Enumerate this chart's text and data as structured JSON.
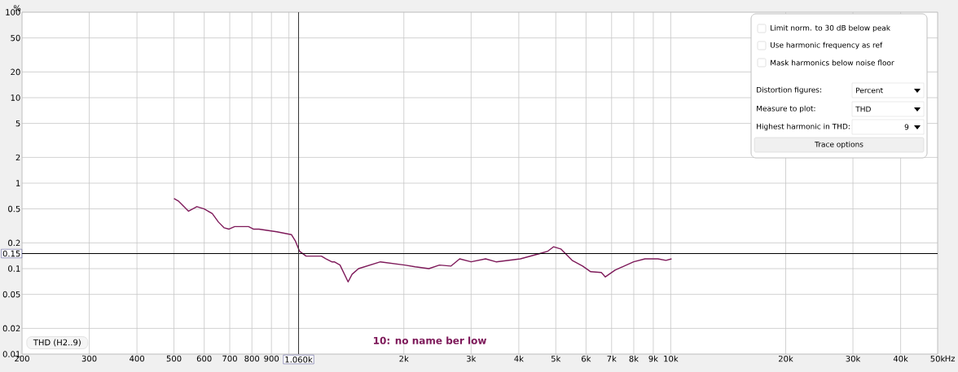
{
  "chart_data": {
    "type": "line",
    "ylabel": "%",
    "xlabel": "Hz",
    "x": [
      500,
      513,
      546,
      574,
      600,
      630,
      654,
      677,
      697,
      721,
      784,
      807,
      835,
      877,
      930,
      1015,
      1040,
      1066,
      1109,
      1175,
      1216,
      1252,
      1295,
      1315,
      1361,
      1429,
      1464,
      1522,
      1737,
      2010,
      2141,
      2326,
      2479,
      2655,
      2800,
      3000,
      3274,
      3487,
      4038,
      4540,
      4766,
      4930,
      5152,
      5516,
      5878,
      6171,
      6578,
      6741,
      7146,
      7995,
      8560,
      9256,
      9714,
      10050
    ],
    "series": [
      {
        "name": "10: no name ber low",
        "color": "#7e1a5a",
        "values": [
          0.66,
          0.62,
          0.47,
          0.53,
          0.5,
          0.44,
          0.35,
          0.3,
          0.29,
          0.31,
          0.31,
          0.29,
          0.29,
          0.28,
          0.27,
          0.25,
          0.21,
          0.16,
          0.14,
          0.14,
          0.14,
          0.13,
          0.12,
          0.12,
          0.11,
          0.07,
          0.086,
          0.1,
          0.12,
          0.11,
          0.105,
          0.1,
          0.11,
          0.107,
          0.13,
          0.12,
          0.13,
          0.12,
          0.13,
          0.15,
          0.16,
          0.18,
          0.17,
          0.125,
          0.107,
          0.092,
          0.09,
          0.08,
          0.096,
          0.12,
          0.13,
          0.13,
          0.125,
          0.13
        ]
      }
    ],
    "xlim": [
      200,
      50000
    ],
    "ylim": [
      0.01,
      100
    ],
    "xticks": [
      200,
      300,
      400,
      500,
      600,
      700,
      800,
      900,
      {
        "value": 1000,
        "label": null
      },
      {
        "value": 2000,
        "label": "2k"
      },
      {
        "value": 3000,
        "label": "3k"
      },
      {
        "value": 4000,
        "label": "4k"
      },
      {
        "value": 5000,
        "label": "5k"
      },
      {
        "value": 6000,
        "label": "6k"
      },
      {
        "value": 7000,
        "label": "7k"
      },
      {
        "value": 8000,
        "label": "8k"
      },
      {
        "value": 9000,
        "label": "9k"
      },
      {
        "value": 10000,
        "label": "10k"
      },
      {
        "value": 20000,
        "label": "20k"
      },
      {
        "value": 30000,
        "label": "30k"
      },
      {
        "value": 40000,
        "label": "40k"
      },
      {
        "value": 50000,
        "label": "50k"
      }
    ],
    "yticks": [
      0.01,
      0.02,
      0.05,
      0.1,
      0.2,
      0.5,
      1,
      2,
      5,
      10,
      20,
      50,
      100
    ],
    "log": "xy",
    "grid": true,
    "marker": "none",
    "line_style": "solid",
    "ref_lines": [
      {
        "axis": "y",
        "value": 0.15,
        "label": "0.15",
        "color": "#000000"
      },
      {
        "axis": "x",
        "value": 1060,
        "label": "1.060k",
        "color": "#333333"
      }
    ],
    "annotations": [
      "THD (H2..9)",
      "Limit norm. to 30 dB below peak",
      "Use harmonic frequency as ref",
      "Mask harmonics below noise floor",
      "Distortion figures:",
      "Percent",
      "Measure to plot:",
      "THD",
      "Highest harmonic in THD:",
      "9",
      "Trace options"
    ]
  }
}
